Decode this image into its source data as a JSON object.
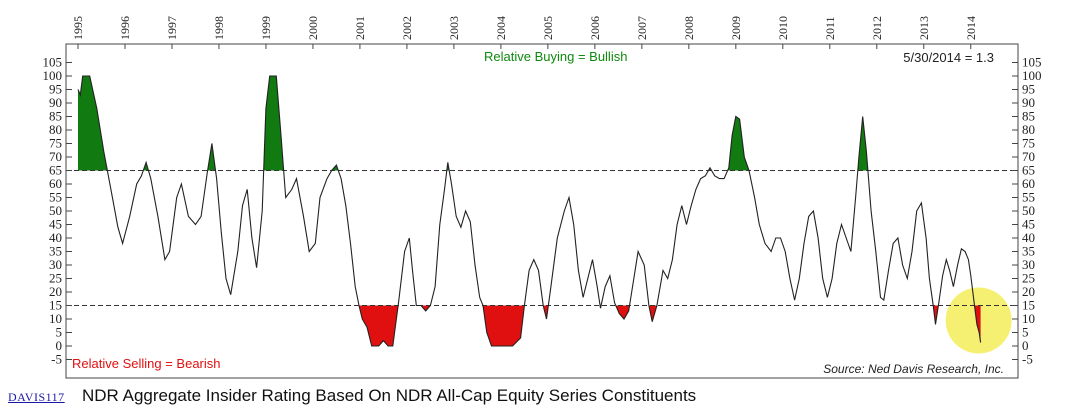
{
  "chart_data": {
    "type": "line",
    "title": "NDR Aggregate Insider Rating Based On NDR All-Cap Equity Series Constituents",
    "chart_id": "DAVIS117",
    "latest_reading": "5/30/2014 = 1.3",
    "source": "Source: Ned Davis Research, Inc.",
    "annotations": {
      "upper": "Relative Buying = Bullish",
      "lower": "Relative Selling = Bearish"
    },
    "thresholds": {
      "upper": 65,
      "lower": 15
    },
    "ylim": [
      -5,
      105
    ],
    "yticks": [
      -5,
      0,
      5,
      10,
      15,
      20,
      25,
      30,
      35,
      40,
      45,
      50,
      55,
      60,
      65,
      70,
      75,
      80,
      85,
      90,
      95,
      100,
      105
    ],
    "xlim": [
      1995.0,
      2014.75
    ],
    "x_tick_labels": [
      "1995",
      "1996",
      "1997",
      "1998",
      "1999",
      "2000",
      "2001",
      "2002",
      "2003",
      "2004",
      "2005",
      "2006",
      "2007",
      "2008",
      "2009",
      "2010",
      "2011",
      "2012",
      "2013",
      "2014"
    ],
    "colors": {
      "line": "#222222",
      "bullish": "#117a11",
      "bearish": "#e01010",
      "highlight": "#f2ea3c"
    },
    "series": [
      {
        "values": [
          [
            1995.0,
            95
          ],
          [
            1995.05,
            93
          ],
          [
            1995.1,
            100
          ],
          [
            1995.25,
            100
          ],
          [
            1995.4,
            88
          ],
          [
            1995.55,
            72
          ],
          [
            1995.7,
            58
          ],
          [
            1995.85,
            44
          ],
          [
            1995.95,
            38
          ],
          [
            1996.1,
            48
          ],
          [
            1996.25,
            60
          ],
          [
            1996.35,
            63
          ],
          [
            1996.45,
            68
          ],
          [
            1996.55,
            62
          ],
          [
            1996.7,
            48
          ],
          [
            1996.85,
            32
          ],
          [
            1996.95,
            35
          ],
          [
            1997.1,
            55
          ],
          [
            1997.2,
            60
          ],
          [
            1997.35,
            48
          ],
          [
            1997.5,
            45
          ],
          [
            1997.62,
            48
          ],
          [
            1997.75,
            64
          ],
          [
            1997.85,
            75
          ],
          [
            1997.95,
            62
          ],
          [
            1998.05,
            42
          ],
          [
            1998.15,
            25
          ],
          [
            1998.25,
            19
          ],
          [
            1998.4,
            35
          ],
          [
            1998.5,
            52
          ],
          [
            1998.6,
            58
          ],
          [
            1998.7,
            40
          ],
          [
            1998.8,
            29
          ],
          [
            1998.92,
            50
          ],
          [
            1999.0,
            88
          ],
          [
            1999.08,
            100
          ],
          [
            1999.22,
            100
          ],
          [
            1999.32,
            78
          ],
          [
            1999.42,
            55
          ],
          [
            1999.55,
            58
          ],
          [
            1999.65,
            62
          ],
          [
            1999.8,
            48
          ],
          [
            1999.92,
            35
          ],
          [
            2000.05,
            38
          ],
          [
            2000.15,
            55
          ],
          [
            2000.3,
            62
          ],
          [
            2000.4,
            65
          ],
          [
            2000.5,
            67
          ],
          [
            2000.6,
            62
          ],
          [
            2000.7,
            52
          ],
          [
            2000.8,
            38
          ],
          [
            2000.9,
            22
          ],
          [
            2000.98,
            15
          ],
          [
            2001.05,
            10
          ],
          [
            2001.15,
            7
          ],
          [
            2001.25,
            0
          ],
          [
            2001.4,
            0
          ],
          [
            2001.5,
            2
          ],
          [
            2001.6,
            0
          ],
          [
            2001.7,
            0
          ],
          [
            2001.82,
            16
          ],
          [
            2001.95,
            35
          ],
          [
            2002.05,
            40
          ],
          [
            2002.12,
            28
          ],
          [
            2002.2,
            15
          ],
          [
            2002.3,
            15
          ],
          [
            2002.4,
            13
          ],
          [
            2002.5,
            15
          ],
          [
            2002.6,
            22
          ],
          [
            2002.7,
            45
          ],
          [
            2002.8,
            58
          ],
          [
            2002.87,
            68
          ],
          [
            2002.95,
            60
          ],
          [
            2003.05,
            48
          ],
          [
            2003.15,
            44
          ],
          [
            2003.25,
            50
          ],
          [
            2003.35,
            46
          ],
          [
            2003.45,
            30
          ],
          [
            2003.55,
            18
          ],
          [
            2003.62,
            15
          ],
          [
            2003.7,
            5
          ],
          [
            2003.8,
            0
          ],
          [
            2004.25,
            0
          ],
          [
            2004.42,
            3
          ],
          [
            2004.5,
            15
          ],
          [
            2004.6,
            28
          ],
          [
            2004.7,
            32
          ],
          [
            2004.8,
            28
          ],
          [
            2004.9,
            15
          ],
          [
            2004.97,
            10
          ],
          [
            2005.05,
            20
          ],
          [
            2005.2,
            40
          ],
          [
            2005.35,
            50
          ],
          [
            2005.45,
            55
          ],
          [
            2005.55,
            45
          ],
          [
            2005.65,
            28
          ],
          [
            2005.75,
            18
          ],
          [
            2005.85,
            25
          ],
          [
            2005.95,
            32
          ],
          [
            2006.05,
            22
          ],
          [
            2006.12,
            14
          ],
          [
            2006.22,
            22
          ],
          [
            2006.32,
            26
          ],
          [
            2006.42,
            16
          ],
          [
            2006.52,
            12
          ],
          [
            2006.62,
            10
          ],
          [
            2006.72,
            13
          ],
          [
            2006.82,
            24
          ],
          [
            2006.92,
            35
          ],
          [
            2007.05,
            30
          ],
          [
            2007.15,
            15
          ],
          [
            2007.22,
            9
          ],
          [
            2007.32,
            15
          ],
          [
            2007.45,
            28
          ],
          [
            2007.55,
            25
          ],
          [
            2007.65,
            32
          ],
          [
            2007.75,
            45
          ],
          [
            2007.85,
            52
          ],
          [
            2007.95,
            45
          ],
          [
            2008.05,
            52
          ],
          [
            2008.15,
            58
          ],
          [
            2008.25,
            62
          ],
          [
            2008.35,
            63
          ],
          [
            2008.45,
            66
          ],
          [
            2008.55,
            63
          ],
          [
            2008.65,
            62
          ],
          [
            2008.75,
            62
          ],
          [
            2008.85,
            66
          ],
          [
            2008.92,
            78
          ],
          [
            2009.0,
            85
          ],
          [
            2009.08,
            84
          ],
          [
            2009.18,
            70
          ],
          [
            2009.28,
            65
          ],
          [
            2009.4,
            55
          ],
          [
            2009.5,
            45
          ],
          [
            2009.62,
            38
          ],
          [
            2009.75,
            35
          ],
          [
            2009.85,
            40
          ],
          [
            2009.95,
            40
          ],
          [
            2010.05,
            35
          ],
          [
            2010.15,
            25
          ],
          [
            2010.25,
            17
          ],
          [
            2010.35,
            25
          ],
          [
            2010.45,
            38
          ],
          [
            2010.55,
            48
          ],
          [
            2010.65,
            50
          ],
          [
            2010.75,
            40
          ],
          [
            2010.85,
            25
          ],
          [
            2010.95,
            18
          ],
          [
            2011.05,
            25
          ],
          [
            2011.15,
            38
          ],
          [
            2011.25,
            45
          ],
          [
            2011.35,
            40
          ],
          [
            2011.45,
            35
          ],
          [
            2011.55,
            55
          ],
          [
            2011.62,
            70
          ],
          [
            2011.7,
            85
          ],
          [
            2011.78,
            72
          ],
          [
            2011.88,
            50
          ],
          [
            2011.98,
            35
          ],
          [
            2012.08,
            18
          ],
          [
            2012.15,
            17
          ],
          [
            2012.25,
            28
          ],
          [
            2012.35,
            38
          ],
          [
            2012.45,
            40
          ],
          [
            2012.55,
            30
          ],
          [
            2012.65,
            25
          ],
          [
            2012.75,
            35
          ],
          [
            2012.85,
            50
          ],
          [
            2012.95,
            53
          ],
          [
            2013.05,
            40
          ],
          [
            2013.12,
            25
          ],
          [
            2013.2,
            15
          ],
          [
            2013.25,
            8
          ],
          [
            2013.32,
            16
          ],
          [
            2013.4,
            26
          ],
          [
            2013.48,
            32
          ],
          [
            2013.55,
            28
          ],
          [
            2013.63,
            22
          ],
          [
            2013.72,
            30
          ],
          [
            2013.8,
            36
          ],
          [
            2013.88,
            35
          ],
          [
            2013.95,
            32
          ],
          [
            2014.0,
            26
          ],
          [
            2014.08,
            15
          ],
          [
            2014.13,
            8
          ],
          [
            2014.18,
            5
          ],
          [
            2014.21,
            1.3
          ]
        ]
      }
    ]
  }
}
